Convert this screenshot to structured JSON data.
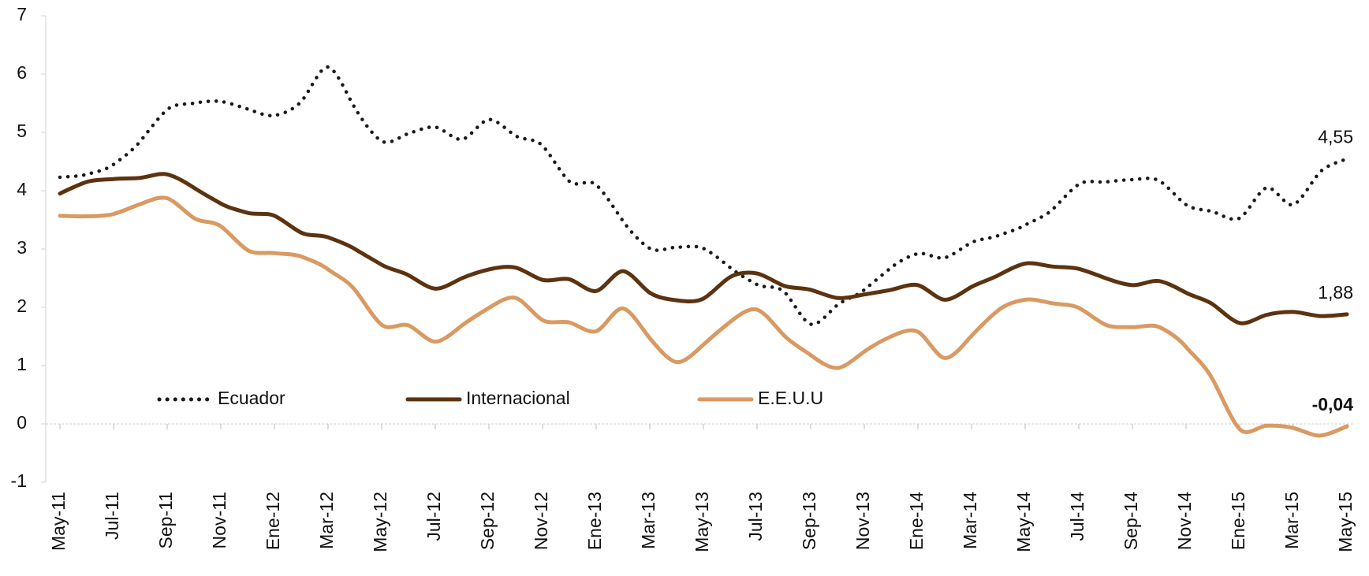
{
  "chart_data": {
    "type": "line",
    "categories": [
      "May-11",
      null,
      "Jul-11",
      null,
      "Sep-11",
      null,
      "Nov-11",
      null,
      "Ene-12",
      null,
      "Mar-12",
      null,
      "May-12",
      null,
      "Jul-12",
      null,
      "Sep-12",
      null,
      "Nov-12",
      null,
      "Ene-13",
      null,
      "Mar-13",
      null,
      "May-13",
      null,
      "Jul-13",
      null,
      "Sep-13",
      null,
      "Nov-13",
      null,
      "Ene-14",
      null,
      "Mar-14",
      null,
      "May-14",
      null,
      "Jul-14",
      null,
      "Sep-14",
      null,
      "Nov-14",
      null,
      "Ene-15",
      null,
      "Mar-15",
      null,
      "May-15"
    ],
    "series": [
      {
        "name": "Ecuador",
        "color": "#1a1a1a",
        "style": "dotted",
        "values": [
          4.23,
          4.28,
          4.45,
          4.85,
          5.39,
          5.5,
          5.53,
          5.4,
          5.29,
          5.53,
          6.12,
          5.42,
          4.85,
          4.98,
          5.09,
          4.88,
          5.22,
          4.94,
          4.77,
          4.16,
          4.1,
          3.48,
          3.01,
          3.03,
          3.01,
          2.68,
          2.39,
          2.27,
          1.71,
          2.04,
          2.3,
          2.68,
          2.92,
          2.85,
          3.11,
          3.23,
          3.41,
          3.67,
          4.11,
          4.15,
          4.19,
          4.17,
          3.76,
          3.64,
          3.53,
          4.05,
          3.76,
          4.32,
          4.55
        ],
        "value_labels": [
          null,
          null,
          null,
          null,
          null,
          null,
          null,
          null,
          null,
          null,
          null,
          null,
          null,
          null,
          null,
          null,
          null,
          null,
          null,
          null,
          null,
          null,
          null,
          null,
          null,
          null,
          null,
          null,
          null,
          null,
          null,
          null,
          null,
          null,
          null,
          null,
          null,
          null,
          null,
          null,
          null,
          null,
          null,
          null,
          null,
          null,
          null,
          null,
          "4,55"
        ],
        "label_color": "#111111"
      },
      {
        "name": "Internacional",
        "color": "#5c3310",
        "style": "solid",
        "values": [
          3.95,
          4.15,
          4.2,
          4.22,
          4.28,
          4.05,
          3.78,
          3.62,
          3.57,
          3.28,
          3.2,
          3.0,
          2.73,
          2.55,
          2.32,
          2.5,
          2.65,
          2.68,
          2.47,
          2.48,
          2.28,
          2.62,
          2.25,
          2.12,
          2.15,
          2.52,
          2.58,
          2.37,
          2.3,
          2.16,
          2.22,
          2.3,
          2.38,
          2.13,
          2.35,
          2.55,
          2.75,
          2.7,
          2.66,
          2.5,
          2.38,
          2.45,
          2.25,
          2.05,
          1.73,
          1.87,
          1.92,
          1.85,
          1.88
        ],
        "value_labels": [
          null,
          null,
          null,
          null,
          null,
          null,
          null,
          null,
          null,
          null,
          null,
          null,
          null,
          null,
          null,
          null,
          null,
          null,
          null,
          null,
          null,
          null,
          null,
          null,
          null,
          null,
          null,
          null,
          null,
          null,
          null,
          null,
          null,
          null,
          null,
          null,
          null,
          null,
          null,
          null,
          null,
          null,
          null,
          null,
          null,
          null,
          null,
          null,
          "1,88"
        ],
        "label_color": "#7a4a1f"
      },
      {
        "name": "E.E.U.U",
        "color": "#d99a62",
        "style": "solid",
        "values": [
          3.57,
          3.56,
          3.6,
          3.77,
          3.87,
          3.53,
          3.39,
          2.98,
          2.93,
          2.87,
          2.65,
          2.3,
          1.7,
          1.69,
          1.41,
          1.69,
          1.99,
          2.16,
          1.78,
          1.74,
          1.59,
          1.98,
          1.47,
          1.06,
          1.36,
          1.75,
          1.96,
          1.52,
          1.18,
          0.96,
          1.24,
          1.5,
          1.58,
          1.13,
          1.51,
          1.95,
          2.13,
          2.07,
          1.99,
          1.7,
          1.66,
          1.66,
          1.32,
          0.76,
          -0.09,
          -0.03,
          -0.07,
          -0.2,
          -0.04
        ],
        "value_labels": [
          null,
          null,
          null,
          null,
          null,
          null,
          null,
          null,
          null,
          null,
          null,
          null,
          null,
          null,
          null,
          null,
          null,
          null,
          null,
          null,
          null,
          null,
          null,
          null,
          null,
          null,
          null,
          null,
          null,
          null,
          null,
          null,
          null,
          null,
          null,
          null,
          null,
          null,
          null,
          null,
          null,
          null,
          null,
          null,
          null,
          null,
          null,
          null,
          "-0,04"
        ],
        "label_color": "#b06d30",
        "label_bold": true
      }
    ],
    "ylim": [
      -1,
      7
    ],
    "yticks": [
      -1,
      0,
      1,
      2,
      3,
      4,
      5,
      6,
      7
    ],
    "grid": false,
    "legend": "lower left"
  }
}
